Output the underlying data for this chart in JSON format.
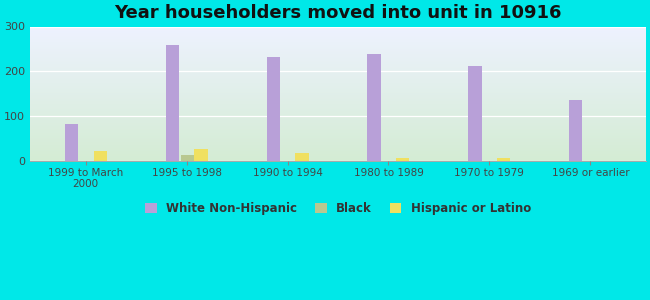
{
  "title": "Year householders moved into unit in 10916",
  "categories": [
    "1999 to March\n2000",
    "1995 to 1998",
    "1990 to 1994",
    "1980 to 1989",
    "1970 to 1979",
    "1969 or earlier"
  ],
  "white": [
    82,
    258,
    232,
    238,
    212,
    136
  ],
  "black": [
    0,
    12,
    0,
    0,
    0,
    0
  ],
  "hispanic": [
    22,
    27,
    17,
    7,
    7,
    0
  ],
  "white_color": "#b8a0d8",
  "black_color": "#b8c890",
  "hispanic_color": "#f0e060",
  "bg_outer": "#00e8e8",
  "bg_inner_top": "#eef2ff",
  "bg_inner_bottom": "#d4ecd4",
  "ylim": [
    0,
    300
  ],
  "yticks": [
    0,
    100,
    200,
    300
  ],
  "bar_width": 0.13,
  "title_fontsize": 13,
  "legend_labels": [
    "White Non-Hispanic",
    "Black",
    "Hispanic or Latino"
  ]
}
